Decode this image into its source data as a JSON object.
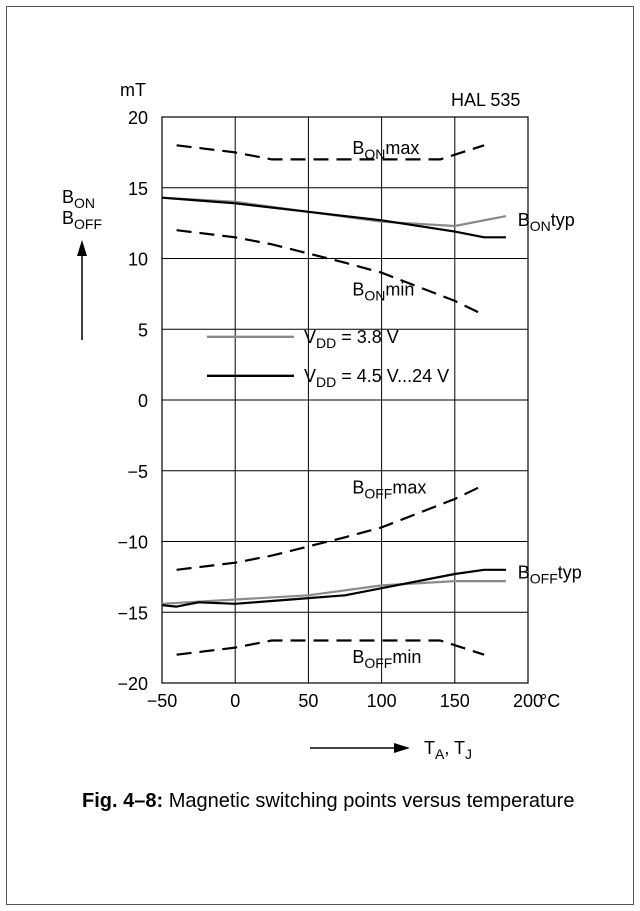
{
  "chart_data": {
    "type": "line",
    "model": "HAL 535",
    "y_unit": "mT",
    "x_unit": "°C",
    "y_axis_symbols": [
      {
        "main": "B",
        "sub": "ON"
      },
      {
        "main": "B",
        "sub": "OFF"
      }
    ],
    "x_axis_label": {
      "parts": [
        {
          "main": "T",
          "sub": "A"
        },
        {
          "sep": ", "
        },
        {
          "main": "T",
          "sub": "J"
        }
      ]
    },
    "xlim": [
      -50,
      200
    ],
    "ylim": [
      -20,
      20
    ],
    "x_ticks": [
      -50,
      0,
      50,
      100,
      150,
      200
    ],
    "x_tick_labels": [
      "−50",
      "0",
      "50",
      "100",
      "150",
      "200"
    ],
    "y_ticks": [
      -20,
      -15,
      -10,
      -5,
      0,
      5,
      10,
      15,
      20
    ],
    "y_tick_labels": [
      "−20",
      "−15",
      "−10",
      "−5",
      "0",
      "5",
      "10",
      "15",
      "20"
    ],
    "grid": true,
    "colors": {
      "v38": "#8a8a8a",
      "v45": "#000000",
      "limits": "#000000"
    },
    "legend": [
      {
        "key": "v38",
        "label_main": "V",
        "label_sub": "DD",
        "label_rest": " = 3.8 V"
      },
      {
        "key": "v45",
        "label_main": "V",
        "label_sub": "DD",
        "label_rest": " = 4.5 V...24 V"
      }
    ],
    "series": [
      {
        "key": "v38",
        "group": "B_ON typ",
        "style": "solid",
        "x": [
          -50,
          0,
          50,
          100,
          150,
          185
        ],
        "y": [
          14.3,
          14.0,
          13.3,
          12.6,
          12.3,
          13.0
        ]
      },
      {
        "key": "v45",
        "group": "B_ON typ",
        "style": "solid",
        "x": [
          -50,
          -25,
          0,
          50,
          100,
          150,
          170,
          185
        ],
        "y": [
          14.3,
          14.1,
          13.9,
          13.3,
          12.7,
          11.9,
          11.5,
          11.5
        ]
      },
      {
        "key": "limits",
        "group": "B_ON max",
        "style": "dashed",
        "x": [
          -40,
          0,
          25,
          140,
          170
        ],
        "y": [
          18,
          17.5,
          17,
          17,
          18
        ]
      },
      {
        "key": "limits",
        "group": "B_ON min",
        "style": "dashed",
        "x": [
          -40,
          0,
          25,
          75,
          100,
          150,
          170
        ],
        "y": [
          12,
          11.5,
          11,
          9.7,
          9,
          7.0,
          6
        ]
      },
      {
        "key": "limits",
        "group": "B_OFF max",
        "style": "dashed",
        "x": [
          -40,
          0,
          25,
          75,
          100,
          150,
          170
        ],
        "y": [
          -12,
          -11.5,
          -11,
          -9.7,
          -9,
          -7.0,
          -6
        ]
      },
      {
        "key": "v38",
        "group": "B_OFF typ",
        "style": "solid",
        "x": [
          -50,
          0,
          50,
          100,
          150,
          185
        ],
        "y": [
          -14.4,
          -14.1,
          -13.8,
          -13.1,
          -12.8,
          -12.8
        ]
      },
      {
        "key": "v45",
        "group": "B_OFF typ",
        "style": "solid",
        "x": [
          -50,
          -40,
          -25,
          0,
          50,
          75,
          100,
          150,
          170,
          185
        ],
        "y": [
          -14.5,
          -14.6,
          -14.3,
          -14.4,
          -14.0,
          -13.8,
          -13.3,
          -12.3,
          -12.0,
          -12.0
        ]
      },
      {
        "key": "limits",
        "group": "B_OFF min",
        "style": "dashed",
        "x": [
          -40,
          0,
          25,
          140,
          170
        ],
        "y": [
          -18,
          -17.5,
          -17,
          -17,
          -18
        ]
      }
    ],
    "annotations": [
      {
        "id": "b-on-max",
        "main": "B",
        "sub": "ON",
        "rest": "max",
        "x": 80,
        "y": 17.4,
        "anchor": "start"
      },
      {
        "id": "b-on-typ",
        "main": "B",
        "sub": "ON",
        "rest": "typ",
        "x": 193,
        "y": 12.3,
        "anchor": "start"
      },
      {
        "id": "b-on-min",
        "main": "B",
        "sub": "ON",
        "rest": "min",
        "x": 80,
        "y": 7.4,
        "anchor": "start"
      },
      {
        "id": "b-off-max",
        "main": "B",
        "sub": "OFF",
        "rest": "max",
        "x": 80,
        "y": -6.6,
        "anchor": "start"
      },
      {
        "id": "b-off-typ",
        "main": "B",
        "sub": "OFF",
        "rest": "typ",
        "x": 193,
        "y": -12.6,
        "anchor": "start"
      },
      {
        "id": "b-off-min",
        "main": "B",
        "sub": "OFF",
        "rest": "min",
        "x": 80,
        "y": -18.6,
        "anchor": "start"
      }
    ]
  },
  "caption": {
    "label": "Fig. 4–8:",
    "text": " Magnetic switching points versus temperature"
  }
}
